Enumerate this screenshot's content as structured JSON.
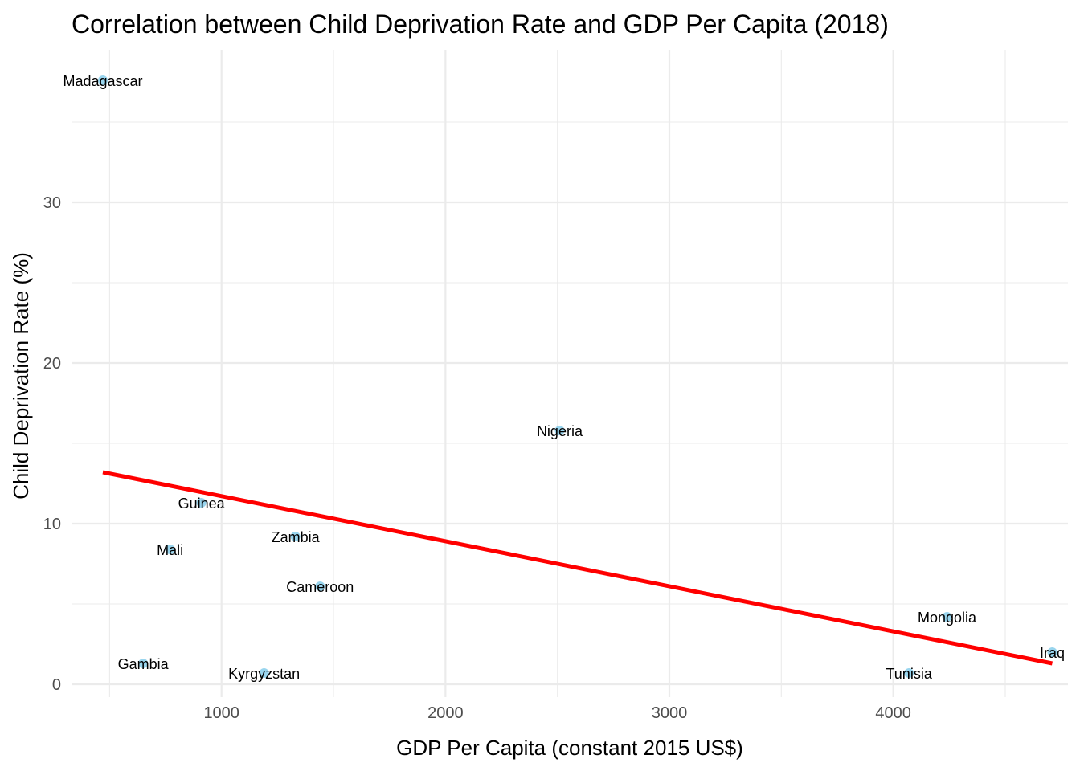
{
  "chart_data": {
    "type": "scatter",
    "title": "Correlation between Child Deprivation Rate and GDP Per Capita (2018)",
    "xlabel": "GDP Per Capita (constant 2015 US$)",
    "ylabel": "Child Deprivation Rate (%)",
    "xlim": [
      330,
      4780
    ],
    "ylim": [
      -0.8,
      39.5
    ],
    "x_ticks": [
      1000,
      2000,
      3000,
      4000
    ],
    "x_minor_ticks": [
      500,
      1500,
      2500,
      3500,
      4500
    ],
    "y_ticks": [
      0,
      10,
      20,
      30
    ],
    "y_minor_ticks": [
      5,
      15,
      25,
      35
    ],
    "grid": true,
    "legend": "none",
    "point_color": "#87CEEB",
    "trend_color": "#FF0000",
    "points": [
      {
        "label": "Madagascar",
        "x": 470,
        "y": 37.6
      },
      {
        "label": "Nigeria",
        "x": 2510,
        "y": 15.8
      },
      {
        "label": "Guinea",
        "x": 910,
        "y": 11.3
      },
      {
        "label": "Zambia",
        "x": 1330,
        "y": 9.2
      },
      {
        "label": "Mali",
        "x": 770,
        "y": 8.4
      },
      {
        "label": "Cameroon",
        "x": 1440,
        "y": 6.1
      },
      {
        "label": "Mongolia",
        "x": 4240,
        "y": 4.2
      },
      {
        "label": "Iraq",
        "x": 4710,
        "y": 2.0
      },
      {
        "label": "Gambia",
        "x": 650,
        "y": 1.3
      },
      {
        "label": "Kyrgyzstan",
        "x": 1190,
        "y": 0.7
      },
      {
        "label": "Tunisia",
        "x": 4070,
        "y": 0.7
      }
    ],
    "trend_line": {
      "x": [
        470,
        4710
      ],
      "y": [
        13.2,
        1.3
      ]
    }
  }
}
